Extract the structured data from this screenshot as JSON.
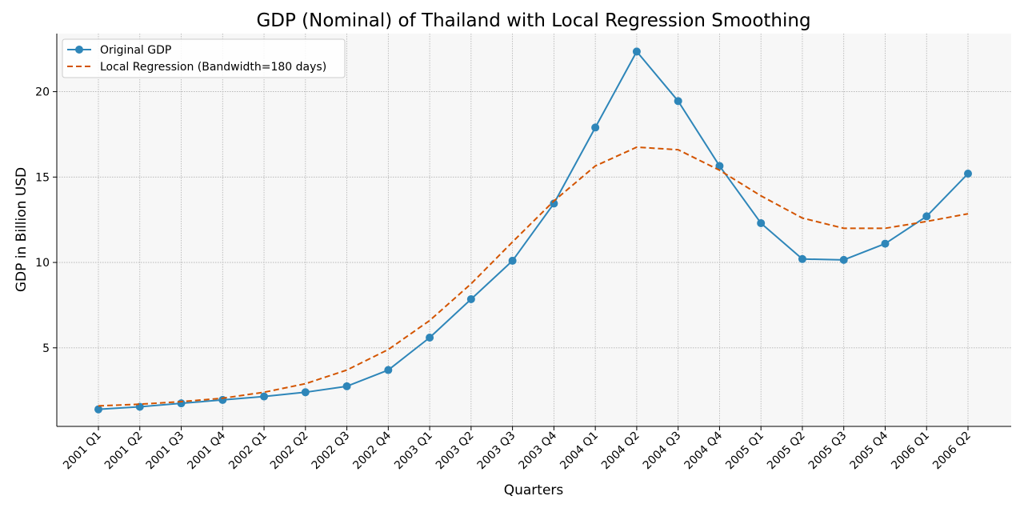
{
  "chart_data": {
    "type": "line",
    "title": "GDP (Nominal) of Thailand with Local Regression Smoothing",
    "xlabel": "Quarters",
    "ylabel": "GDP in Billion USD",
    "categories": [
      "2001 Q1",
      "2001 Q2",
      "2001 Q3",
      "2001 Q4",
      "2002 Q1",
      "2002 Q2",
      "2002 Q3",
      "2002 Q4",
      "2003 Q1",
      "2003 Q2",
      "2003 Q3",
      "2003 Q4",
      "2004 Q1",
      "2004 Q2",
      "2004 Q3",
      "2004 Q4",
      "2005 Q1",
      "2005 Q2",
      "2005 Q3",
      "2005 Q4",
      "2006 Q1",
      "2006 Q2"
    ],
    "yticks": [
      5,
      10,
      15,
      20
    ],
    "ylim": [
      0.4,
      23.4
    ],
    "grid": true,
    "legend_position": "top-left",
    "series": [
      {
        "name": "Original GDP",
        "style": "solid-with-circle-markers",
        "color": "#2e86b9",
        "values": [
          1.4,
          1.55,
          1.75,
          1.95,
          2.15,
          2.4,
          2.75,
          3.7,
          5.6,
          7.85,
          10.1,
          13.45,
          17.9,
          22.35,
          19.45,
          15.65,
          12.3,
          10.2,
          10.15,
          11.1,
          12.7,
          15.2
        ]
      },
      {
        "name": "Local Regression (Bandwidth=180 days)",
        "style": "dashed",
        "color": "#d35400",
        "values": [
          1.6,
          1.7,
          1.85,
          2.05,
          2.4,
          2.9,
          3.7,
          4.9,
          6.6,
          8.75,
          11.2,
          13.6,
          15.65,
          16.75,
          16.6,
          15.4,
          13.9,
          12.6,
          12.0,
          12.0,
          12.4,
          12.85
        ]
      }
    ]
  }
}
